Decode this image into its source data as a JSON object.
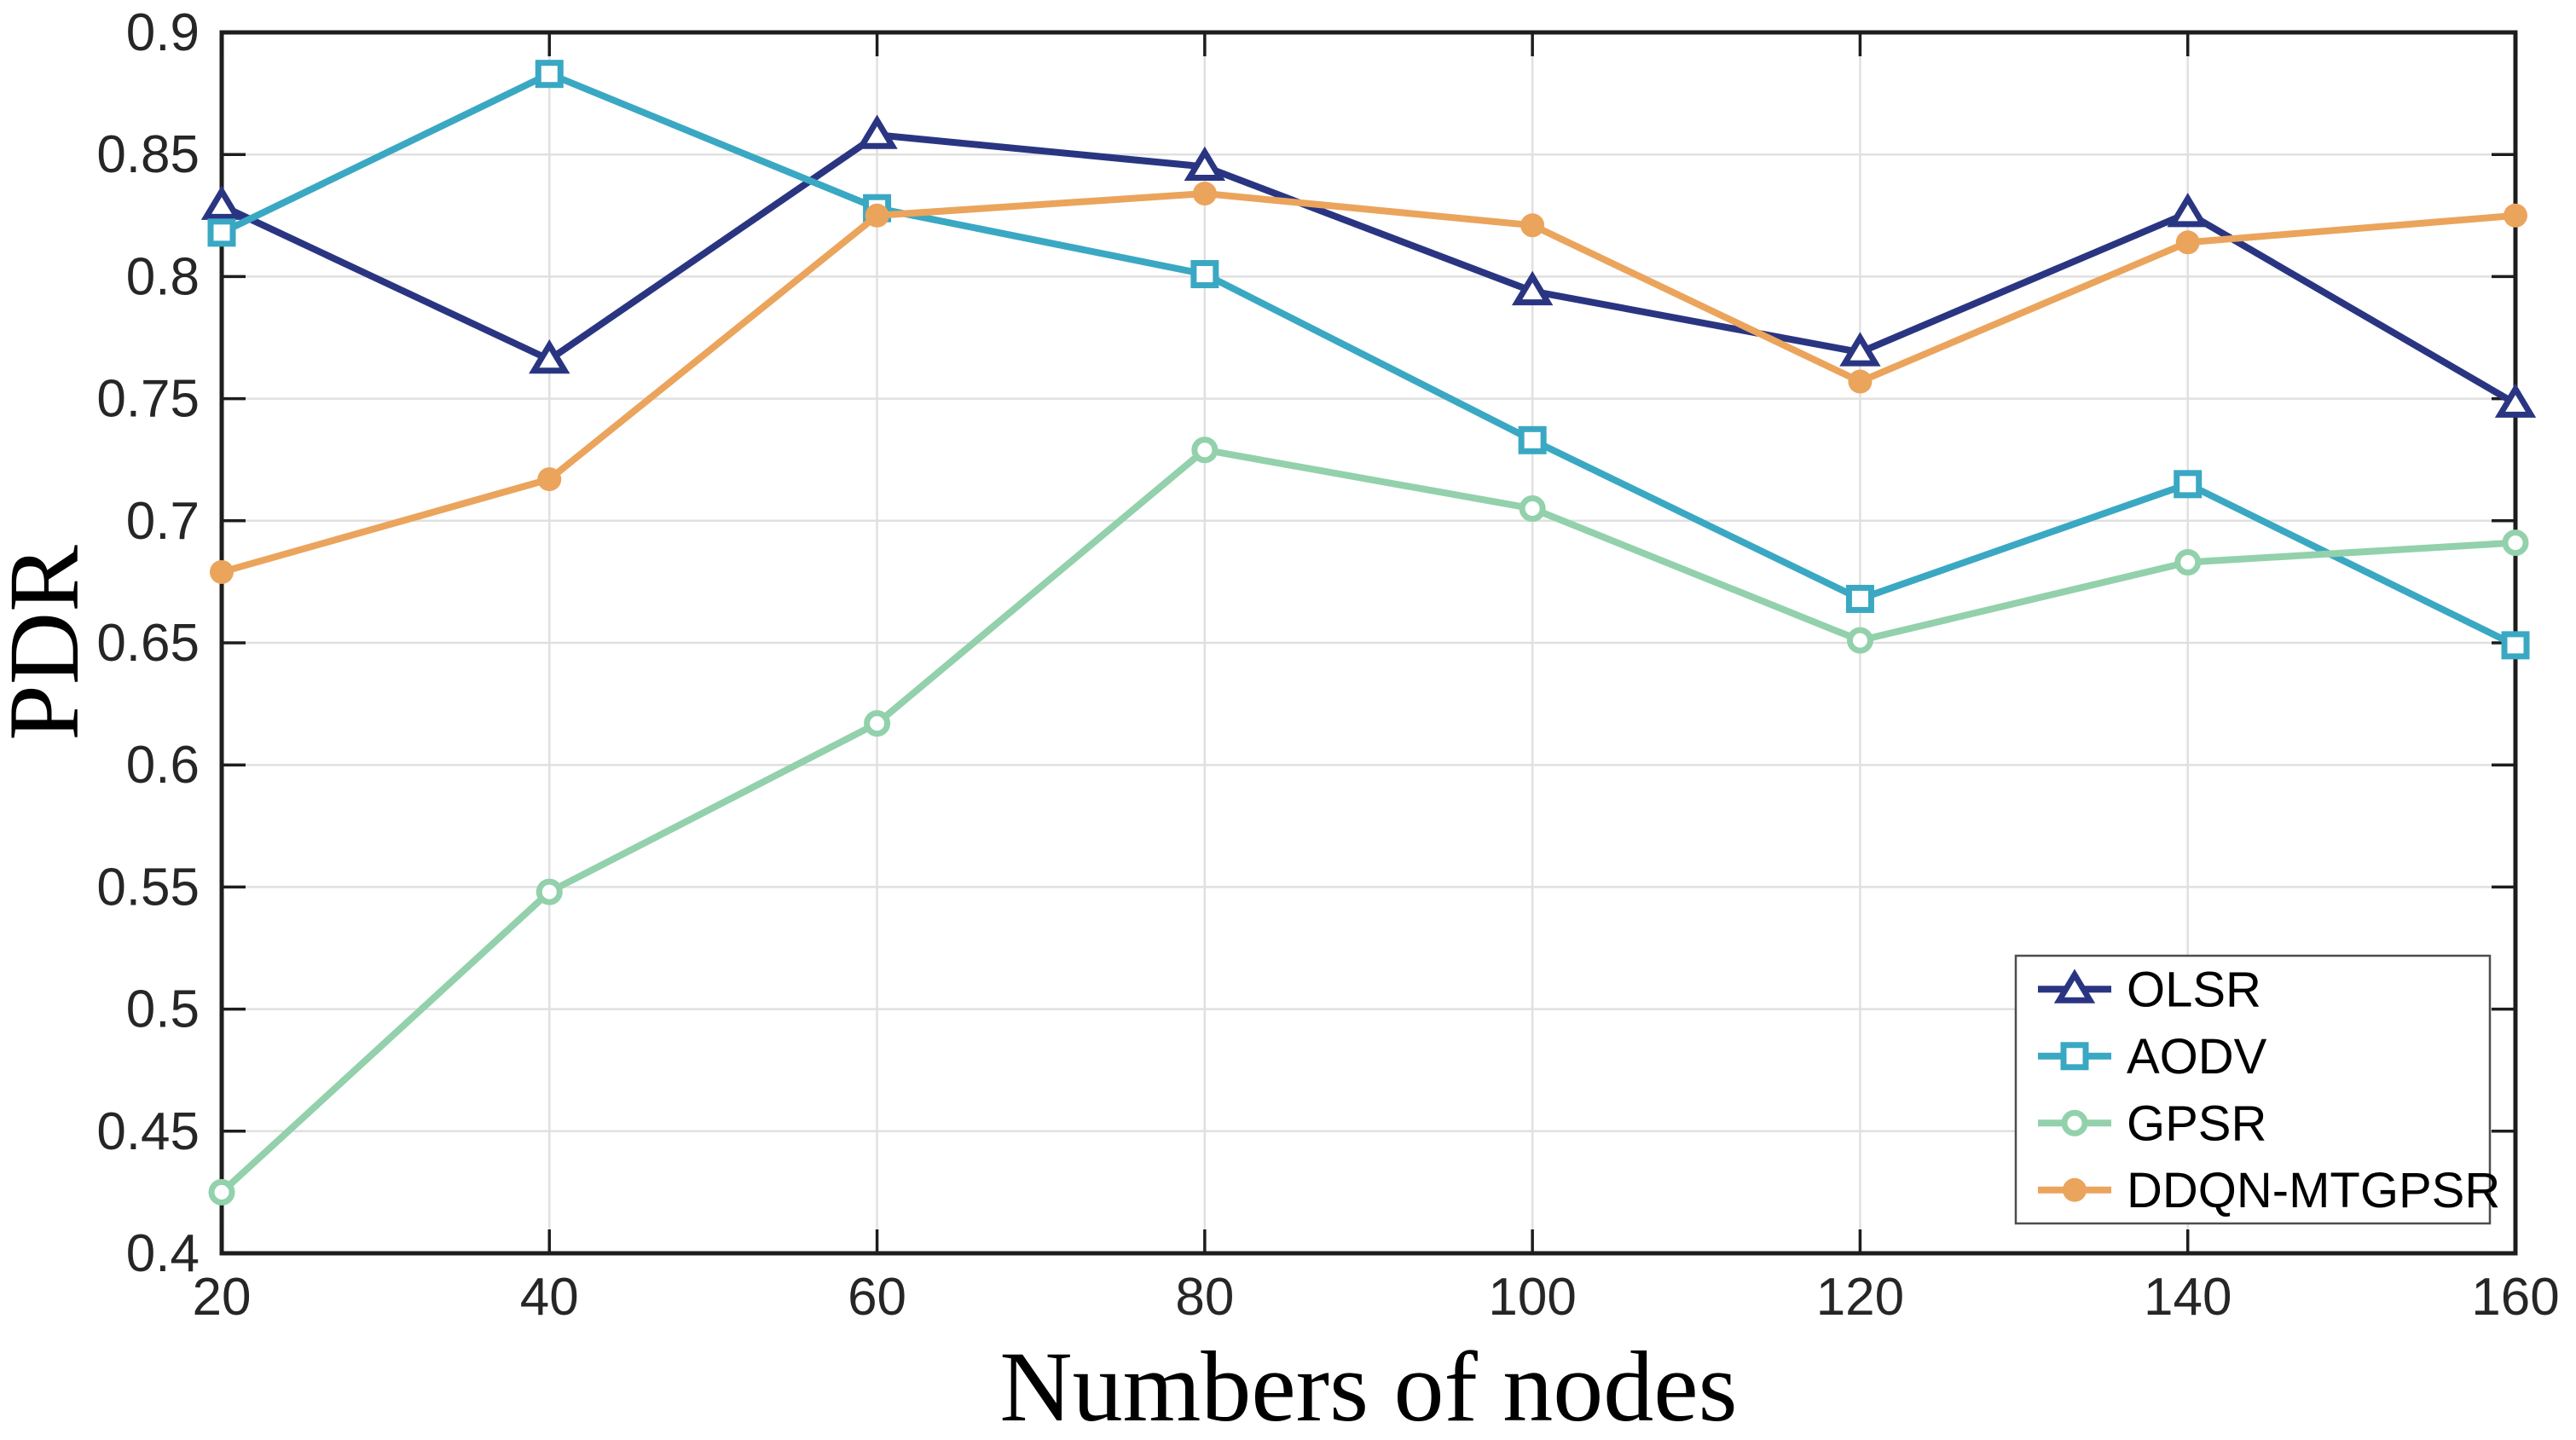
{
  "chart_data": {
    "type": "line",
    "xlabel": "Numbers of nodes",
    "ylabel": "PDR",
    "x": [
      20,
      40,
      60,
      80,
      100,
      120,
      140,
      160
    ],
    "xticks": [
      "20",
      "40",
      "60",
      "80",
      "100",
      "120",
      "140",
      "160"
    ],
    "yticks": [
      "0.4",
      "0.45",
      "0.5",
      "0.55",
      "0.6",
      "0.65",
      "0.7",
      "0.75",
      "0.8",
      "0.85",
      "0.9"
    ],
    "xlim": [
      20,
      160
    ],
    "ylim": [
      0.4,
      0.9
    ],
    "grid": true,
    "legend_position": "southeast",
    "series": [
      {
        "name": "OLSR",
        "color": "#2A3582",
        "marker": "triangle-open",
        "values": [
          0.829,
          0.766,
          0.858,
          0.845,
          0.794,
          0.769,
          0.826,
          0.748
        ]
      },
      {
        "name": "AODV",
        "color": "#3AA8C3",
        "marker": "square-open",
        "values": [
          0.818,
          0.883,
          0.828,
          0.801,
          0.733,
          0.668,
          0.715,
          0.649
        ]
      },
      {
        "name": "GPSR",
        "color": "#92D1AB",
        "marker": "circle-open",
        "values": [
          0.425,
          0.548,
          0.617,
          0.729,
          0.705,
          0.651,
          0.683,
          0.691
        ]
      },
      {
        "name": "DDQN-MTGPSR",
        "color": "#EBA45C",
        "marker": "circle-filled",
        "values": [
          0.679,
          0.717,
          0.825,
          0.834,
          0.821,
          0.757,
          0.814,
          0.825
        ]
      }
    ],
    "colors": {
      "background": "#ffffff",
      "axis": "#1d1d1d",
      "grid": "#E0E0E0",
      "tick_text": "#262626",
      "legend_border": "#4d4d4d",
      "legend_text": "#000000"
    }
  }
}
